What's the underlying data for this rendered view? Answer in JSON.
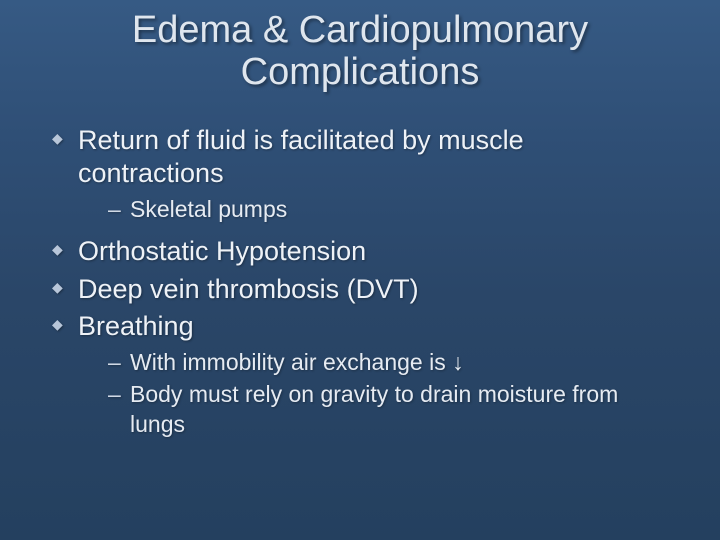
{
  "slide": {
    "background_gradient": {
      "top": "#365a84",
      "mid": "#2a4668",
      "bottom": "#24405f"
    },
    "title_color": "#dfe6ee",
    "text_color": "#eef2f7",
    "bullet_color": "#b8c6d9",
    "title": "Edema & Cardiopulmonary Complications",
    "title_fontsize": 38,
    "bullet_fontsize": 27,
    "sub_fontsize": 23,
    "bullets": [
      {
        "text": "Return of fluid is facilitated by muscle contractions",
        "sub": [
          "Skeletal pumps"
        ]
      },
      {
        "text": "Orthostatic Hypotension",
        "sub": []
      },
      {
        "text": "Deep vein thrombosis (DVT)",
        "sub": []
      },
      {
        "text": "Breathing",
        "sub": [
          "With immobility air exchange is ↓",
          "Body must rely on gravity to drain moisture from lungs"
        ]
      }
    ]
  }
}
